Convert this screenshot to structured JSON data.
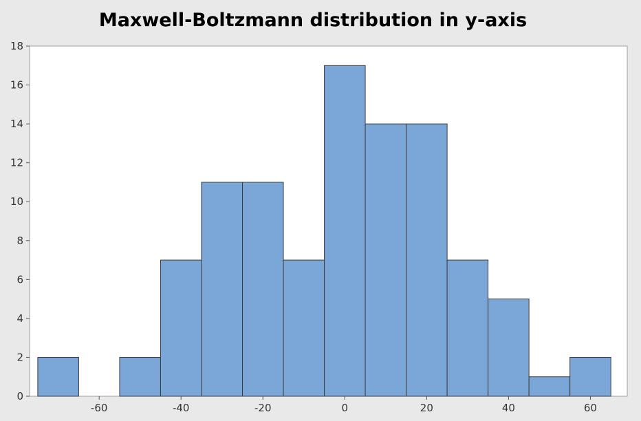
{
  "chart_data": {
    "type": "bar",
    "title": "Maxwell-Boltzmann distribution in y-axis",
    "xlabel": "",
    "ylabel": "",
    "bin_edges": [
      -75,
      -65,
      -55,
      -45,
      -35,
      -25,
      -15,
      -5,
      5,
      15,
      25,
      35,
      45,
      55,
      65
    ],
    "values": [
      2,
      0,
      2,
      7,
      11,
      11,
      7,
      17,
      14,
      14,
      7,
      5,
      1,
      2
    ],
    "xlim": [
      -77,
      69
    ],
    "ylim": [
      0,
      18
    ],
    "x_ticks": [
      -60,
      -40,
      -20,
      0,
      20,
      40,
      60
    ],
    "y_ticks": [
      0,
      2,
      4,
      6,
      8,
      10,
      12,
      14,
      16,
      18
    ],
    "grid": false,
    "legend": "none",
    "colors": {
      "bar_fill": "#7ba6d8",
      "bar_edge": "#3a3a3a",
      "background": "#e9e9e9",
      "plot_area": "#ffffff"
    }
  }
}
